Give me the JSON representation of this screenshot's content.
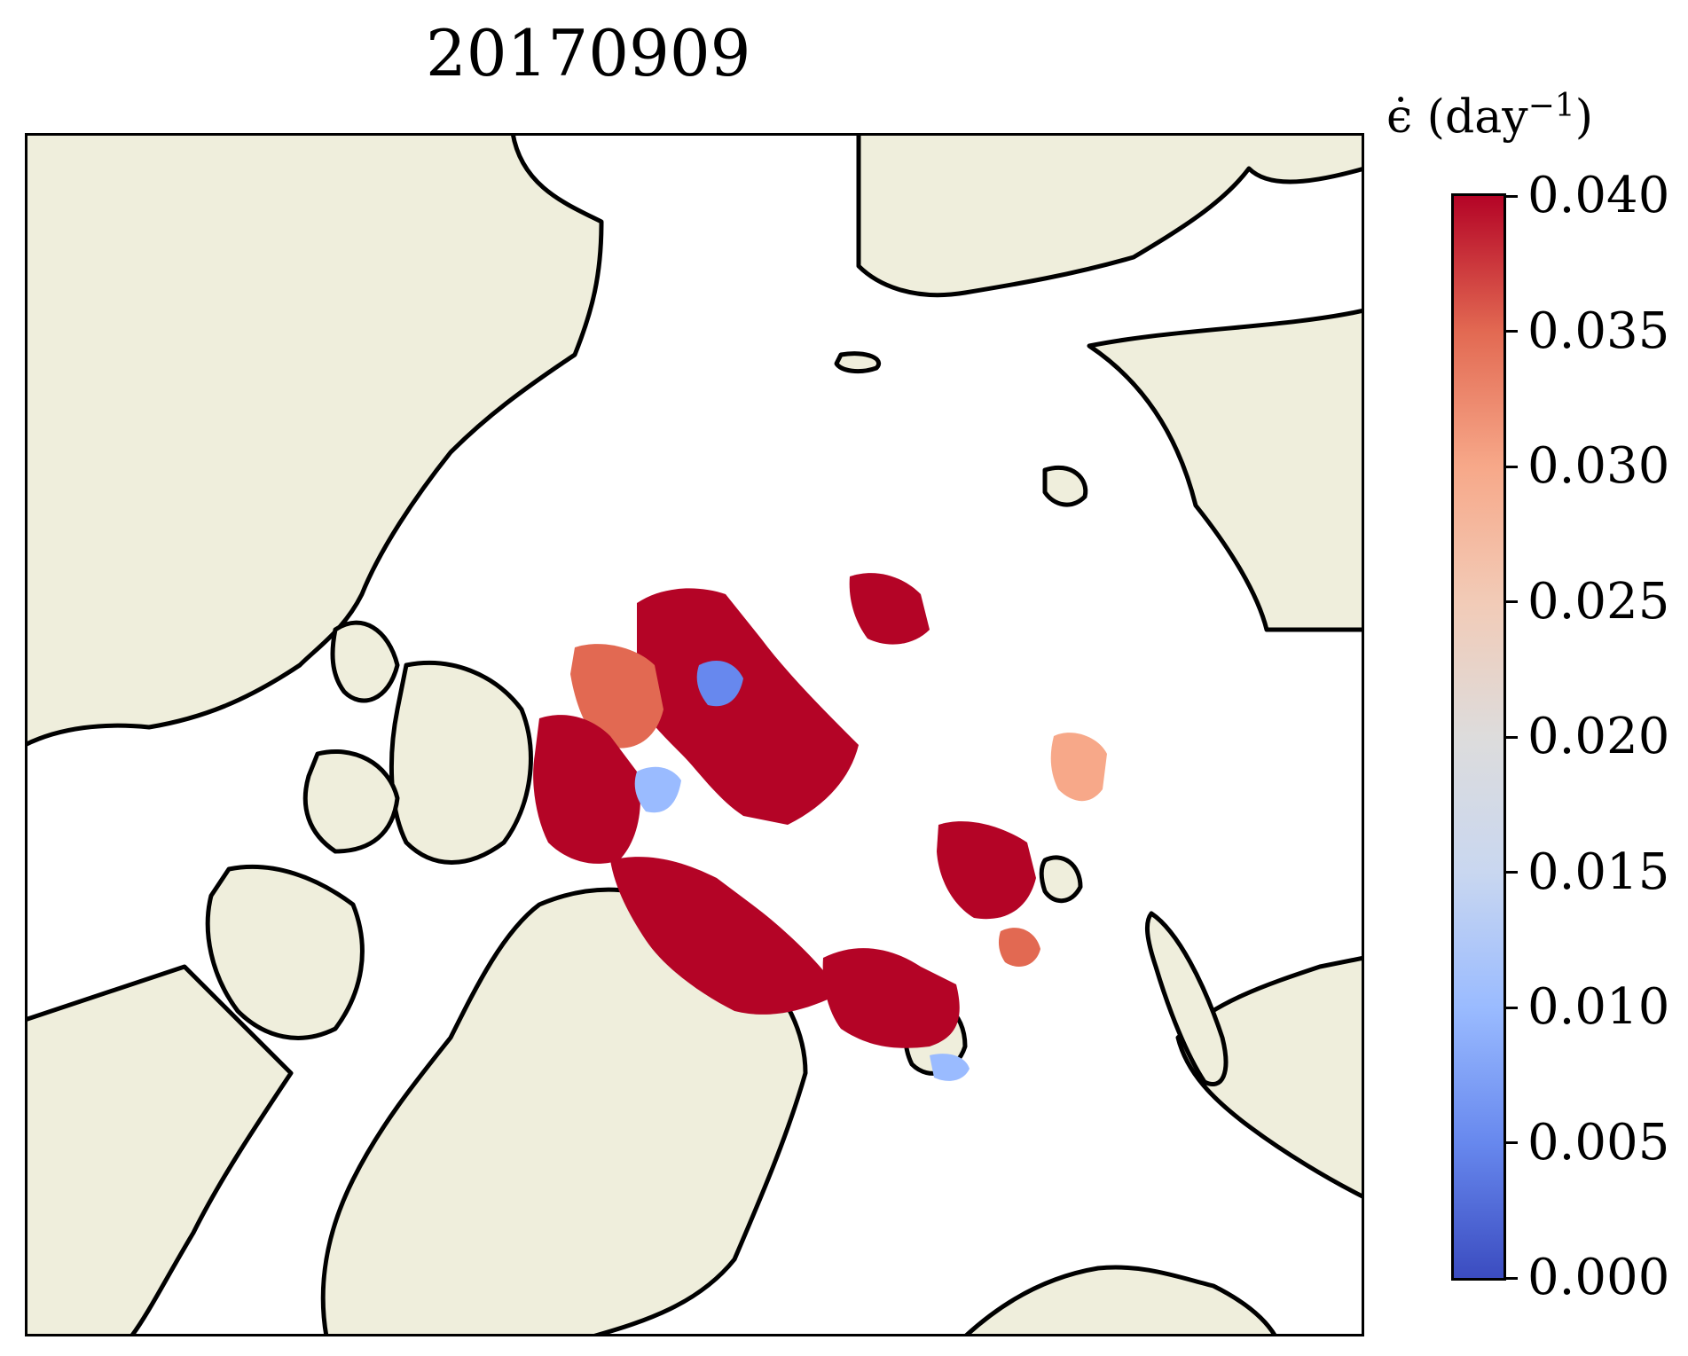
{
  "title": "20170909",
  "colorbar": {
    "label_symbol": "ϵ̇",
    "label_units": "(day",
    "label_exponent": "−1",
    "label_close": ")",
    "ticks": [
      "0.000",
      "0.005",
      "0.010",
      "0.015",
      "0.020",
      "0.025",
      "0.030",
      "0.035",
      "0.040"
    ],
    "min": 0.0,
    "max": 0.04,
    "colormap": "coolwarm",
    "colors": [
      "#3b4cc0",
      "#6788ee",
      "#9abbff",
      "#c9d7f0",
      "#dddcdc",
      "#f2cbb7",
      "#f7a889",
      "#e26952",
      "#b40426"
    ]
  },
  "map": {
    "projection": "north polar stereographic",
    "land_color": "#efeedc",
    "ocean_color": "#ffffff",
    "coastline_color": "#000000",
    "high_value_color": "#b40426"
  }
}
